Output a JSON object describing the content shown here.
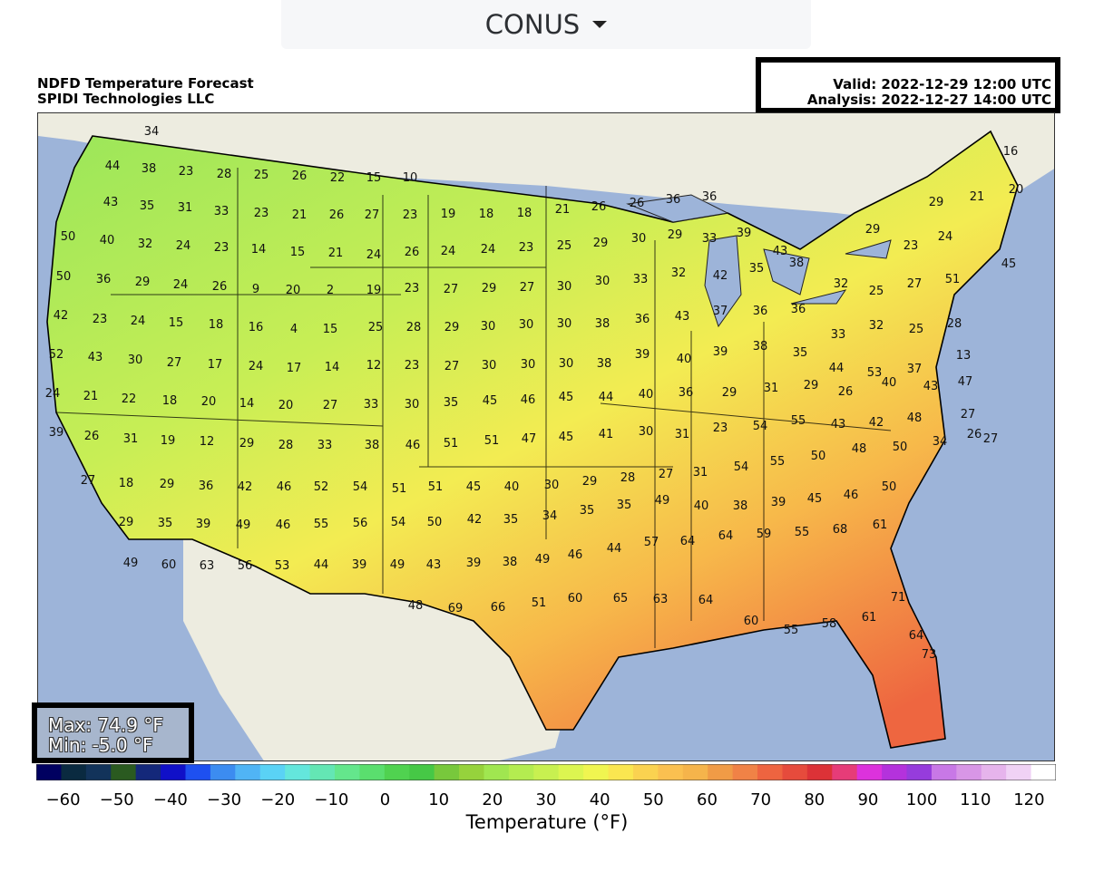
{
  "region_selector": {
    "value": "CONUS"
  },
  "header": {
    "title": "NDFD Temperature Forecast",
    "company": "SPIDI Technologies LLC",
    "valid": "Valid: 2022-12-29 12:00 UTC",
    "analysis": "Analysis: 2022-12-27 14:00 UTC"
  },
  "stats": {
    "max": "Max: 74.9 °F",
    "min": "Min: -5.0 °F"
  },
  "map": {
    "land_color": "#edece0",
    "water_color": "#9db4d9",
    "temperature_labels": [
      "34",
      "44",
      "38",
      "23",
      "28",
      "25",
      "26",
      "22",
      "15",
      "10",
      "43",
      "35",
      "31",
      "33",
      "23",
      "21",
      "26",
      "27",
      "23",
      "19",
      "18",
      "18",
      "21",
      "26",
      "26",
      "36",
      "36",
      "29",
      "21",
      "16",
      "20",
      "50",
      "40",
      "32",
      "24",
      "23",
      "14",
      "15",
      "21",
      "24",
      "26",
      "24",
      "24",
      "23",
      "25",
      "29",
      "30",
      "29",
      "33",
      "39",
      "43",
      "29",
      "23",
      "24",
      "45",
      "50",
      "36",
      "29",
      "24",
      "26",
      "9",
      "20",
      "2",
      "19",
      "23",
      "27",
      "29",
      "27",
      "30",
      "30",
      "33",
      "32",
      "42",
      "35",
      "38",
      "32",
      "25",
      "27",
      "51",
      "42",
      "23",
      "24",
      "15",
      "18",
      "16",
      "4",
      "15",
      "25",
      "28",
      "29",
      "30",
      "30",
      "30",
      "38",
      "36",
      "43",
      "37",
      "36",
      "36",
      "33",
      "32",
      "25",
      "28",
      "52",
      "43",
      "30",
      "27",
      "17",
      "24",
      "17",
      "14",
      "12",
      "23",
      "27",
      "30",
      "30",
      "30",
      "38",
      "39",
      "40",
      "39",
      "38",
      "35",
      "44",
      "53",
      "37",
      "13",
      "24",
      "21",
      "22",
      "18",
      "20",
      "14",
      "20",
      "27",
      "33",
      "30",
      "35",
      "45",
      "46",
      "45",
      "44",
      "40",
      "36",
      "29",
      "31",
      "29",
      "26",
      "40",
      "43",
      "47",
      "39",
      "26",
      "31",
      "19",
      "12",
      "29",
      "28",
      "33",
      "38",
      "46",
      "51",
      "51",
      "47",
      "45",
      "41",
      "30",
      "31",
      "23",
      "54",
      "55",
      "43",
      "42",
      "48",
      "27",
      "27",
      "27",
      "18",
      "29",
      "36",
      "42",
      "46",
      "52",
      "54",
      "51",
      "51",
      "45",
      "40",
      "30",
      "29",
      "28",
      "27",
      "31",
      "54",
      "55",
      "50",
      "48",
      "50",
      "34",
      "26",
      "29",
      "35",
      "39",
      "49",
      "46",
      "55",
      "56",
      "54",
      "50",
      "42",
      "35",
      "34",
      "35",
      "35",
      "49",
      "40",
      "38",
      "39",
      "45",
      "46",
      "50",
      "49",
      "60",
      "63",
      "56",
      "53",
      "44",
      "39",
      "49",
      "43",
      "39",
      "38",
      "49",
      "46",
      "44",
      "57",
      "64",
      "64",
      "59",
      "55",
      "68",
      "61",
      "48",
      "69",
      "66",
      "51",
      "60",
      "65",
      "63",
      "64",
      "60",
      "55",
      "58",
      "61",
      "71",
      "64",
      "73"
    ],
    "temperature_range_f": {
      "min": -5.0,
      "max": 74.9
    }
  },
  "colorbar": {
    "title": "Temperature (°F)",
    "ticks": [
      "−60",
      "−50",
      "−40",
      "−30",
      "−20",
      "−10",
      "0",
      "10",
      "20",
      "30",
      "40",
      "50",
      "60",
      "70",
      "80",
      "90",
      "100",
      "110",
      "120"
    ],
    "range": [
      -65,
      125
    ],
    "colors": [
      "#000060",
      "#0a2a40",
      "#12335a",
      "#2a5a20",
      "#14287a",
      "#1010c8",
      "#1e50f0",
      "#3c8cf0",
      "#50b4f5",
      "#5ad2f5",
      "#64e6dc",
      "#64e6b4",
      "#64e68c",
      "#5ade6e",
      "#50d250",
      "#46c846",
      "#78c83c",
      "#96d23c",
      "#a0e650",
      "#b4ec50",
      "#c8f050",
      "#dcf550",
      "#f0f550",
      "#fae650",
      "#fad250",
      "#fac050",
      "#f5b44b",
      "#f09b46",
      "#f08246",
      "#ee6440",
      "#e64b3c",
      "#dc3237",
      "#e63c78",
      "#dc32dc",
      "#b432dc",
      "#963cdc",
      "#c878e6",
      "#d896e6",
      "#e6b4ec",
      "#f0d2f5",
      "#ffffff"
    ]
  }
}
